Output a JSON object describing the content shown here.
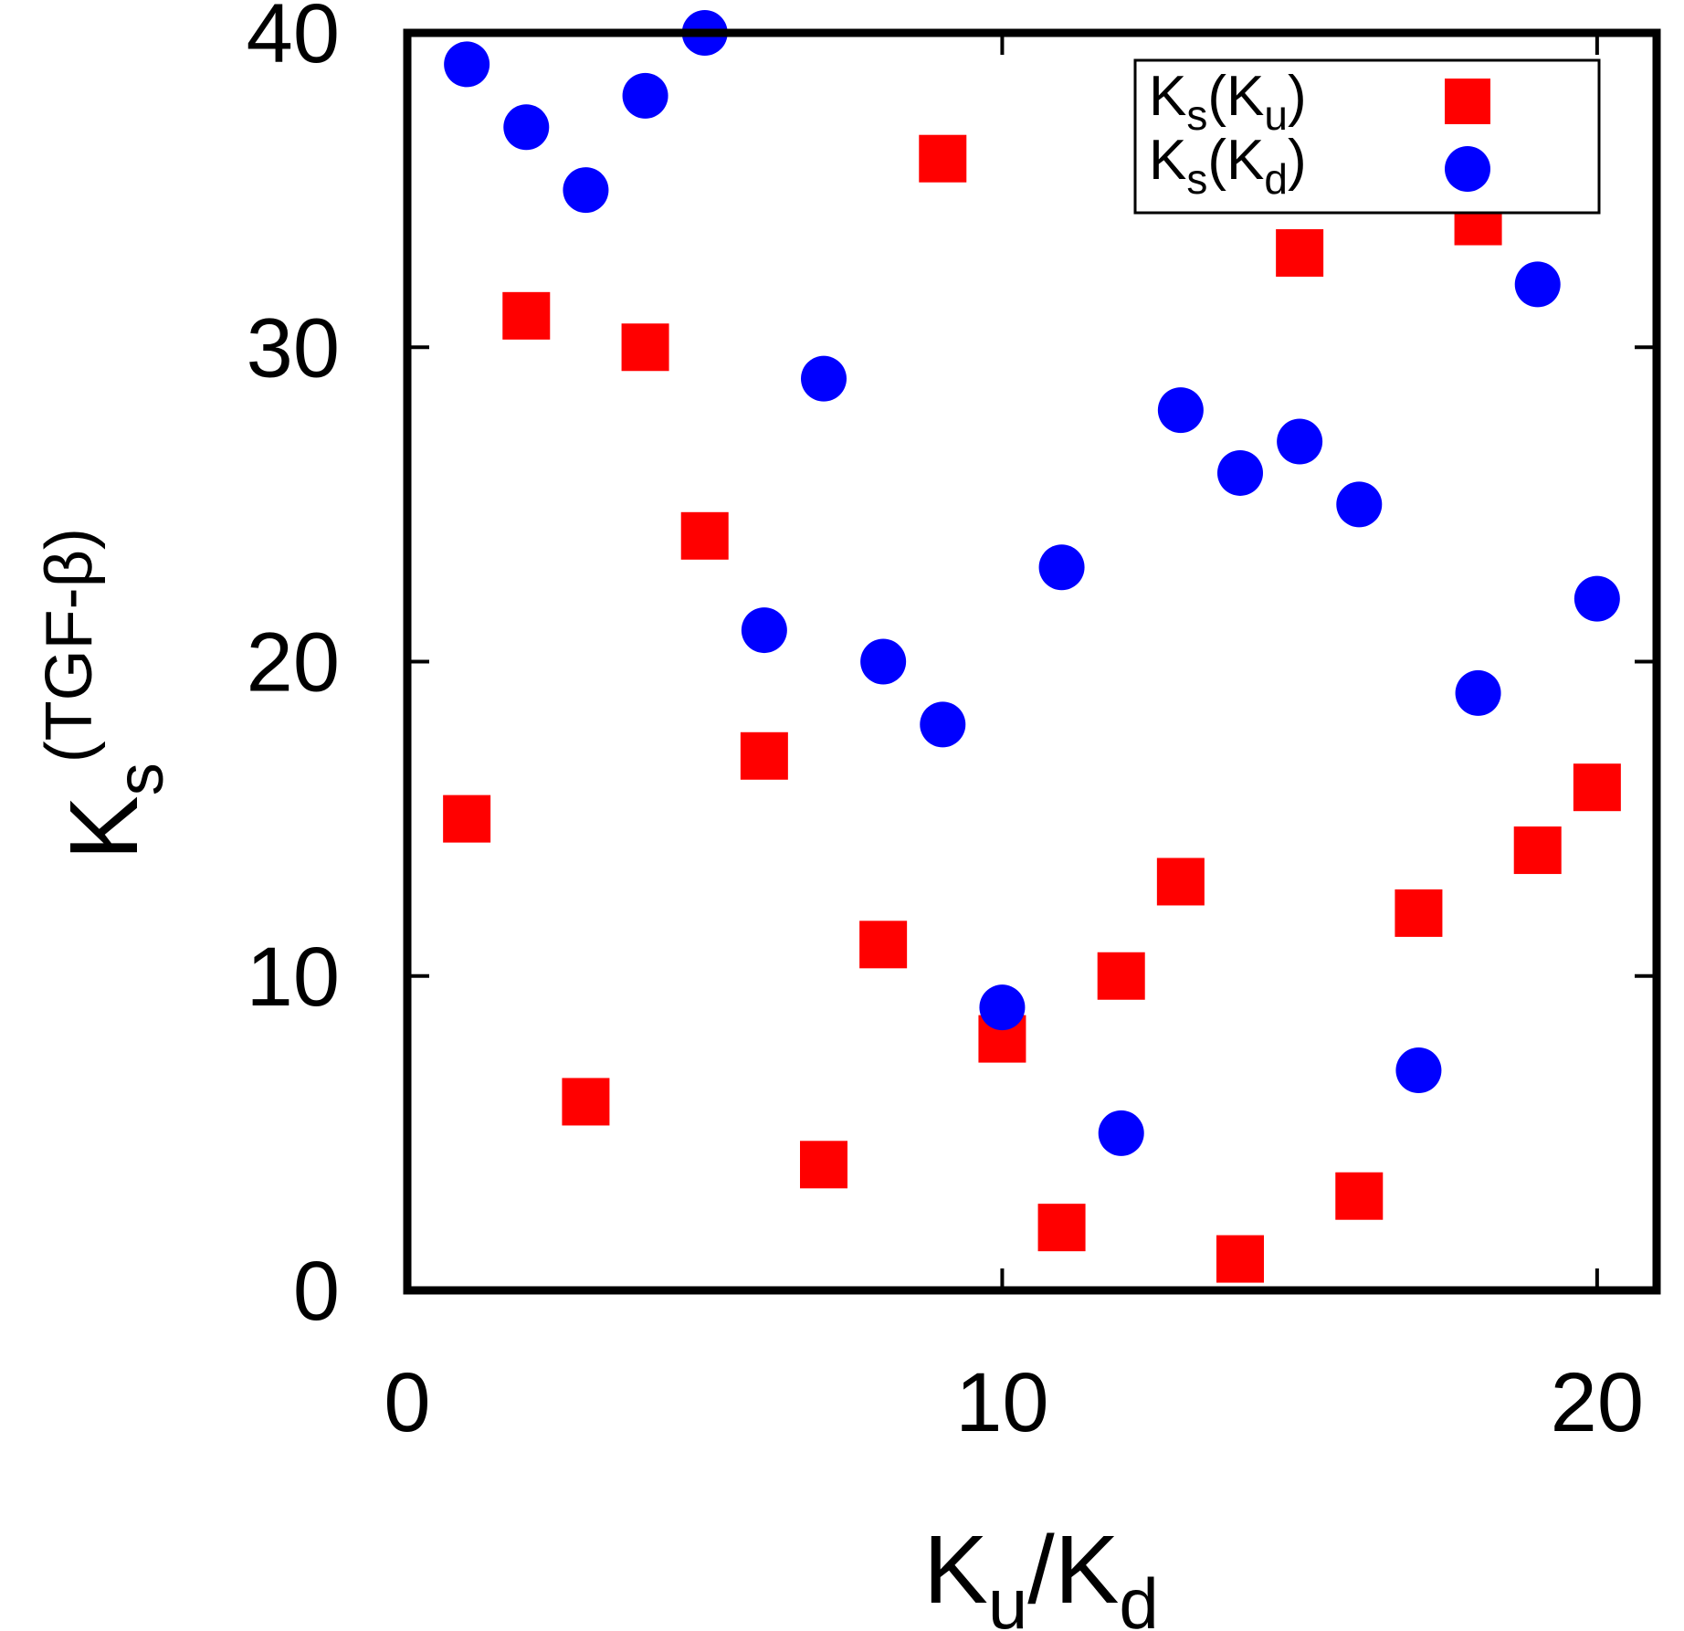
{
  "chart_data": {
    "type": "scatter",
    "title": "",
    "xlabel": {
      "main": "K",
      "sub": "u",
      "sep": "/",
      "main2": "K",
      "sub2": "d"
    },
    "ylabel": {
      "main": "K",
      "sub": "s",
      "sup": "(TGF-β)"
    },
    "xlim": [
      0,
      21
    ],
    "ylim": [
      0,
      40
    ],
    "xticks": [
      0,
      10,
      20
    ],
    "yticks": [
      0,
      10,
      20,
      30,
      40
    ],
    "xtick_labels": [
      "0",
      "10",
      "20"
    ],
    "ytick_labels": [
      "0",
      "10",
      "20",
      "30",
      "40"
    ],
    "grid": false,
    "legend_position": "top-right",
    "series": [
      {
        "name": "Ks(Ku)",
        "label_main": "K",
        "label_sub": "s",
        "label_arg_main": "K",
        "label_arg_sub": "u",
        "marker": "square",
        "color": "#ff0000",
        "x": [
          1,
          2,
          3,
          4,
          5,
          6,
          7,
          8,
          9,
          10,
          11,
          12,
          13,
          14,
          15,
          16,
          17,
          18,
          19,
          20
        ],
        "y": [
          15,
          31,
          6,
          30,
          24,
          17,
          4,
          11,
          36,
          8,
          2,
          10,
          13,
          1,
          33,
          3,
          12,
          34,
          14,
          16
        ]
      },
      {
        "name": "Ks(Kd)",
        "label_main": "K",
        "label_sub": "s",
        "label_arg_main": "K",
        "label_arg_sub": "d",
        "marker": "circle",
        "color": "#0000ff",
        "x": [
          1,
          2,
          3,
          4,
          5,
          6,
          7,
          8,
          9,
          10,
          11,
          12,
          13,
          14,
          15,
          16,
          17,
          18,
          19,
          20
        ],
        "y": [
          39,
          37,
          35,
          38,
          40,
          21,
          29,
          20,
          18,
          9,
          23,
          5,
          28,
          26,
          27,
          25,
          7,
          19,
          32,
          22
        ]
      }
    ]
  }
}
